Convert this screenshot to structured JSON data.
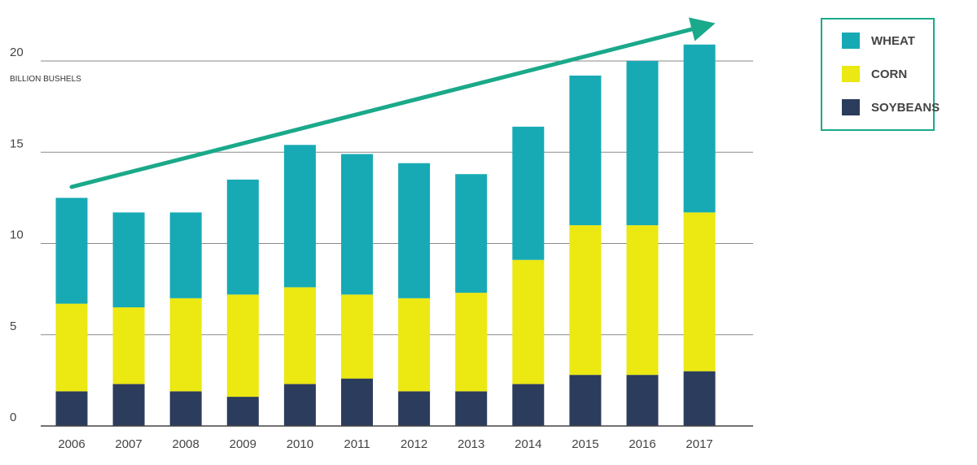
{
  "chart_data": {
    "type": "bar",
    "stacked": true,
    "categories": [
      "2006",
      "2007",
      "2008",
      "2009",
      "2010",
      "2011",
      "2012",
      "2013",
      "2014",
      "2015",
      "2016",
      "2017"
    ],
    "series": [
      {
        "name": "SOYBEANS",
        "color": "#2c3c5c",
        "values": [
          1.9,
          2.3,
          1.9,
          1.6,
          2.3,
          2.6,
          1.9,
          1.9,
          2.3,
          2.8,
          2.8,
          3.0
        ]
      },
      {
        "name": "CORN",
        "color": "#ebe812",
        "values": [
          4.8,
          4.2,
          5.1,
          5.6,
          5.3,
          4.6,
          5.1,
          5.4,
          6.8,
          8.2,
          8.2,
          8.7
        ]
      },
      {
        "name": "WHEAT",
        "color": "#17aab5",
        "values": [
          5.8,
          5.2,
          4.7,
          6.3,
          7.8,
          7.7,
          7.4,
          6.5,
          7.3,
          8.2,
          9.0,
          9.2
        ]
      }
    ],
    "ylabel": "BILLION BUSHELS",
    "yticks": [
      0,
      5,
      10,
      15,
      20
    ],
    "ylim": [
      0,
      22
    ],
    "grid": true,
    "trend_arrow": {
      "color": "#1aa98a",
      "from": [
        "2006",
        13.1
      ],
      "to": [
        "2017",
        21.9
      ]
    },
    "legend": {
      "position": "top-right",
      "border_color": "#1aa98a",
      "order": [
        "WHEAT",
        "CORN",
        "SOYBEANS"
      ]
    }
  }
}
